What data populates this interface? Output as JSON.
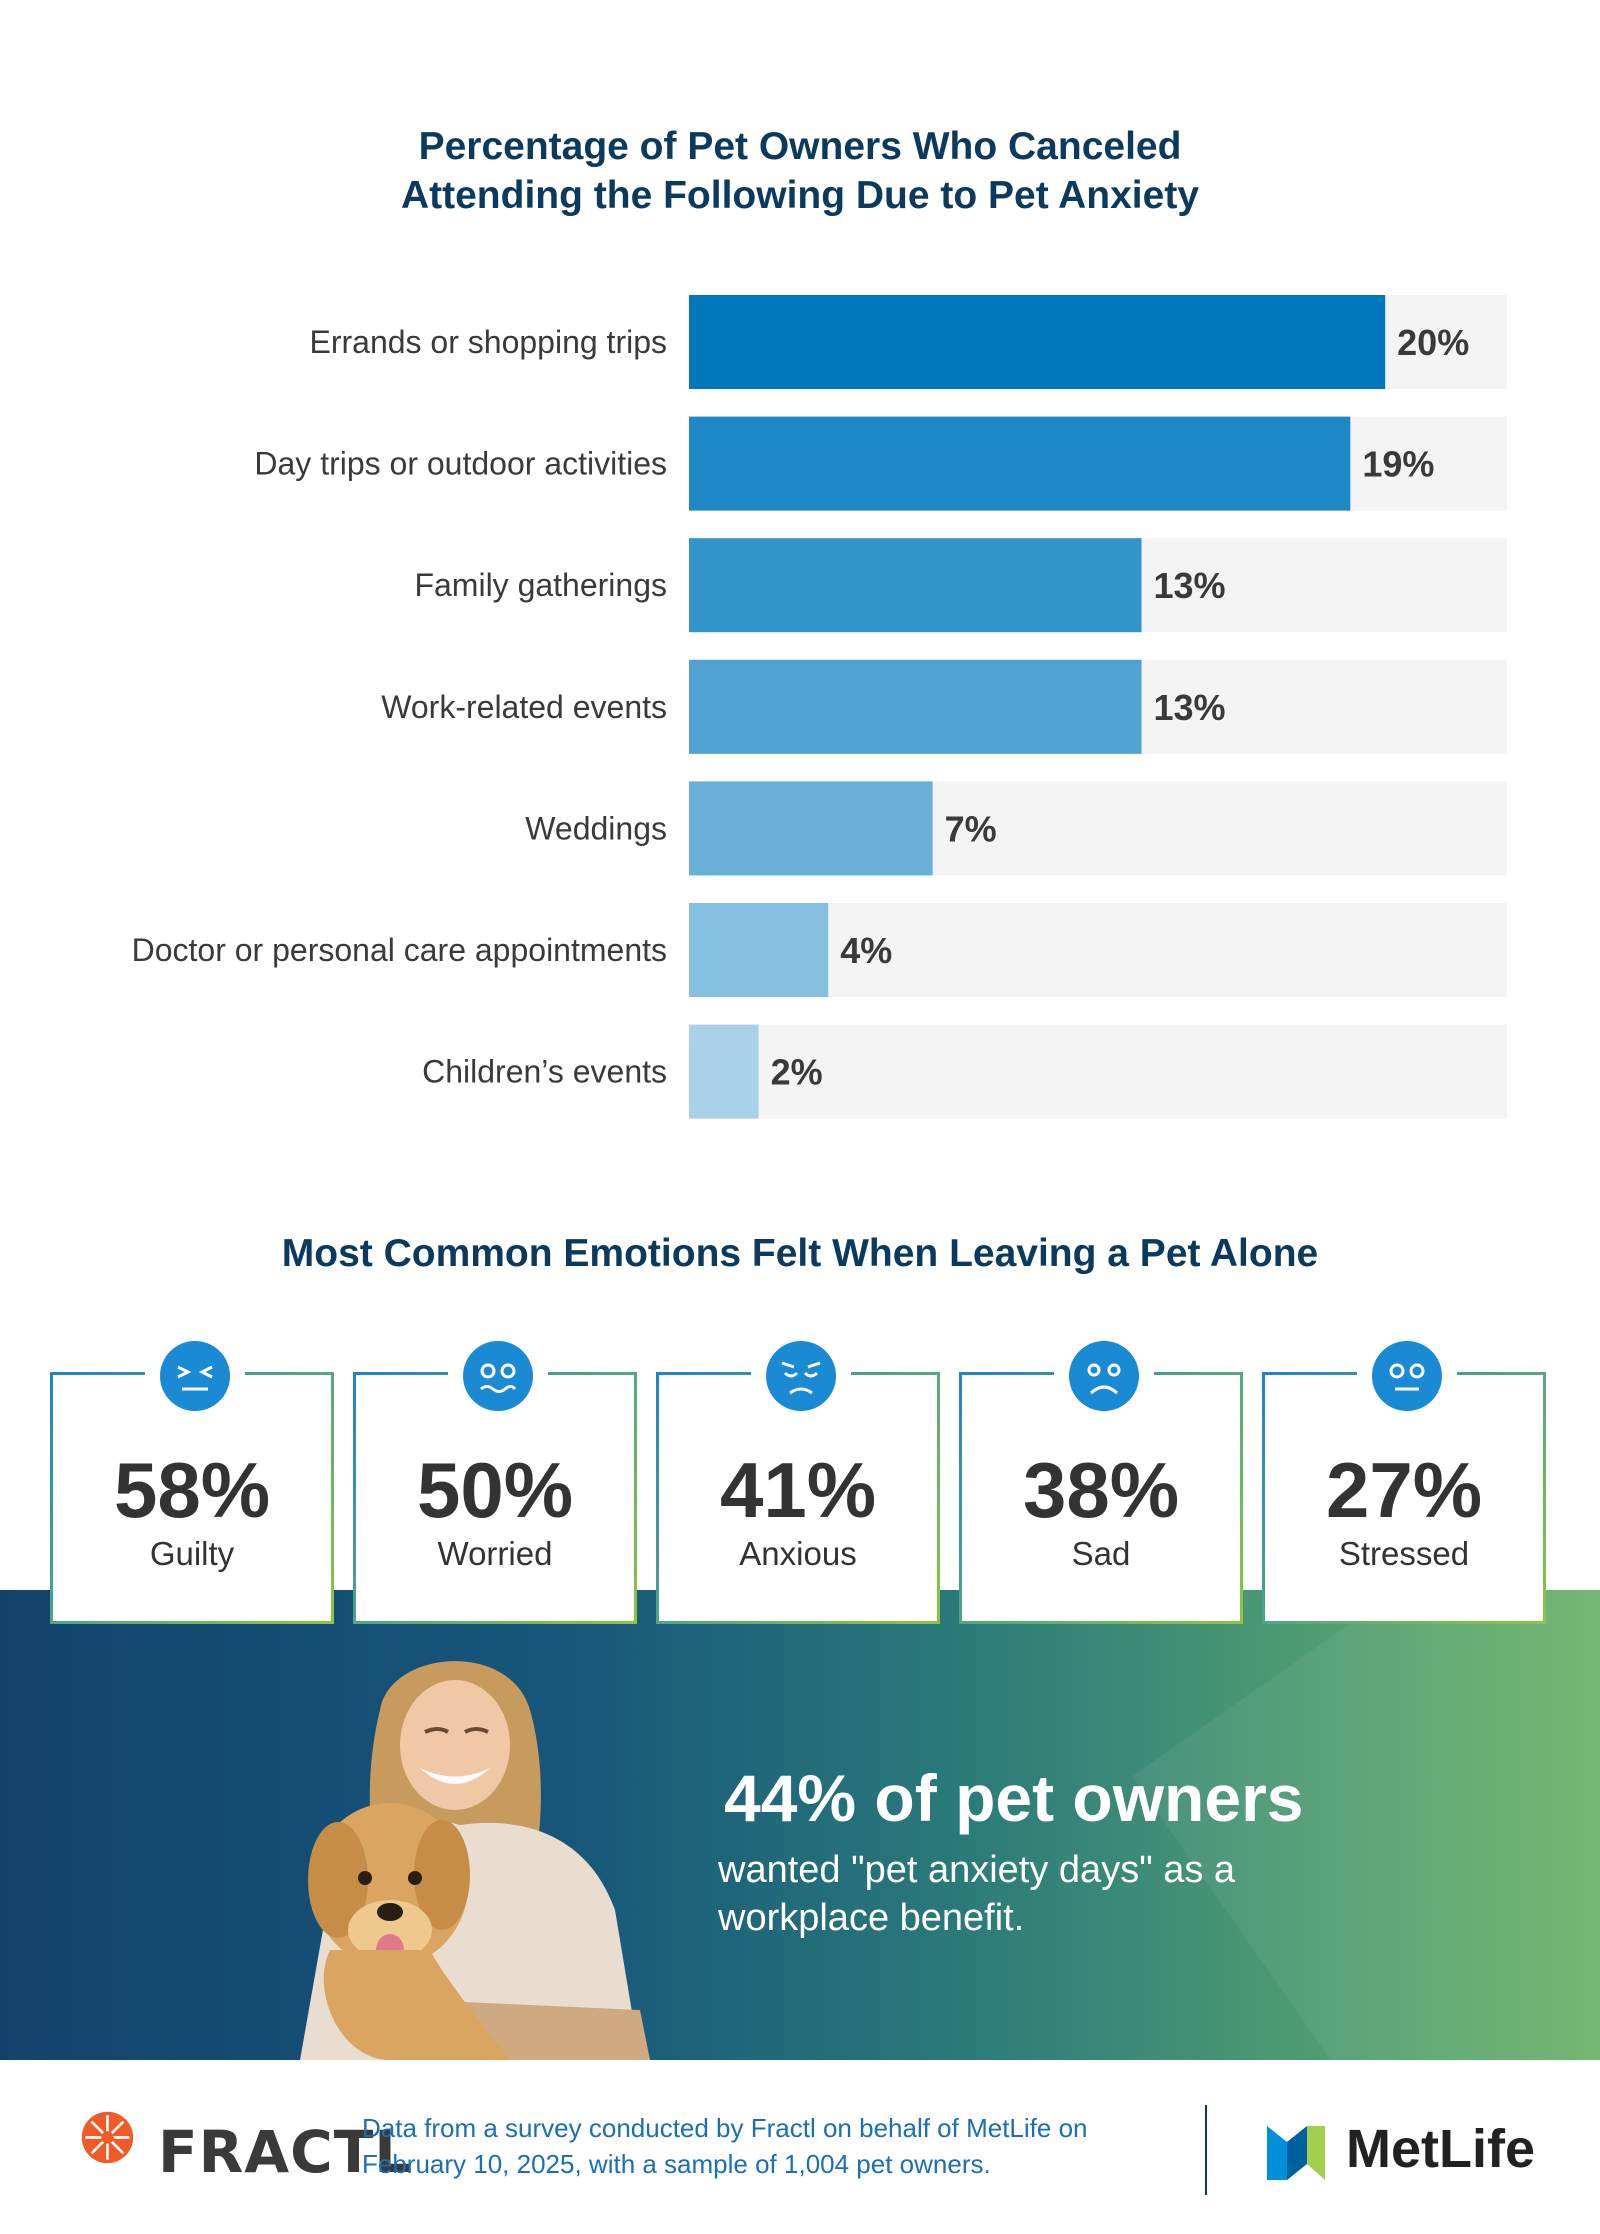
{
  "chart_data": {
    "type": "bar",
    "orientation": "horizontal",
    "title": "Percentage of Pet Owners Who Canceled Attending the Following Due to Pet Anxiety",
    "title_lines": [
      "Percentage of Pet Owners Who Canceled",
      "Attending the Following Due to Pet Anxiety"
    ],
    "categories": [
      "Errands or shopping trips",
      "Day trips or outdoor activities",
      "Family gatherings",
      "Work-related events",
      "Weddings",
      "Doctor or personal care appointments",
      "Children’s events"
    ],
    "values": [
      20,
      19,
      13,
      13,
      7,
      4,
      2
    ],
    "value_labels": [
      "20%",
      "19%",
      "13%",
      "13%",
      "7%",
      "4%",
      "2%"
    ],
    "bar_colors": [
      "#0277be",
      "#1c89c6",
      "#3294cb",
      "#4fa2d1",
      "#68b0d8",
      "#86c0e0",
      "#a8d2ea"
    ],
    "track_color": "#f4f4f4",
    "xlim": [
      0,
      23.5
    ],
    "grid": false
  },
  "emotions": {
    "title": "Most Common Emotions Felt When Leaving a Pet Alone",
    "items": [
      {
        "pct": "58%",
        "label": "Guilty",
        "icon": "squinting-face-icon"
      },
      {
        "pct": "50%",
        "label": "Worried",
        "icon": "worried-face-icon"
      },
      {
        "pct": "41%",
        "label": "Anxious",
        "icon": "anxious-face-icon"
      },
      {
        "pct": "38%",
        "label": "Sad",
        "icon": "sad-face-icon"
      },
      {
        "pct": "27%",
        "label": "Stressed",
        "icon": "stressed-face-icon"
      }
    ],
    "icon_color": "#1a8ad4"
  },
  "banner": {
    "headline": "44% of pet owners",
    "subtext": "wanted \"pet anxiety days\" as a workplace benefit."
  },
  "footer": {
    "left_logo": "FRACTL",
    "note": "Data from a survey conducted by Fractl on behalf of MetLife on February 10, 2025, with a sample of 1,004 pet owners.",
    "right_logo": "MetLife"
  }
}
